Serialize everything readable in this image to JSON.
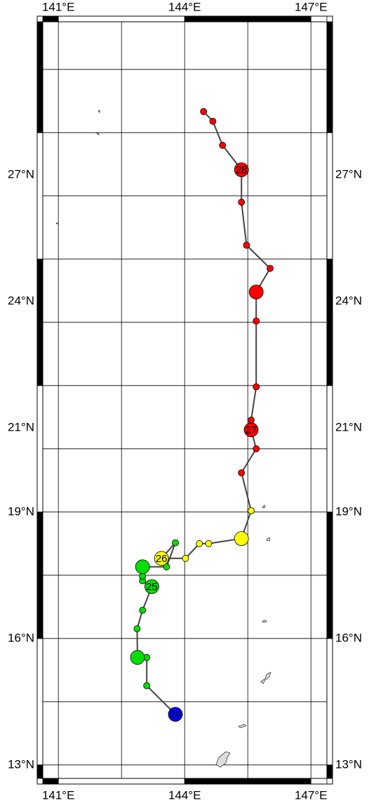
{
  "chart_data": {
    "type": "track",
    "xlim": [
      140.63,
      147.38
    ],
    "ylim": [
      12.68,
      30.63
    ],
    "xticks": [
      {
        "value": 141,
        "label": "141°E"
      },
      {
        "value": 144,
        "label": "144°E"
      },
      {
        "value": 147,
        "label": "147°E"
      }
    ],
    "yticks": [
      {
        "value": 13,
        "label": "13°N"
      },
      {
        "value": 16,
        "label": "16°N"
      },
      {
        "value": 19,
        "label": "19°N"
      },
      {
        "value": 21,
        "label": "21°N"
      },
      {
        "value": 24,
        "label": "24°N"
      },
      {
        "value": 27,
        "label": "27°N"
      }
    ],
    "xgrid": [
      141,
      142.5,
      144,
      145.5,
      147
    ],
    "ygrid": [
      13,
      14.5,
      16,
      17.5,
      19,
      20.5,
      22,
      23.5,
      25,
      26.5,
      28,
      29.5
    ],
    "x": [
      143.78,
      143.1,
      143.1,
      142.88,
      142.87,
      143.0,
      143.22,
      143.0,
      143.0,
      143.0,
      143.57,
      143.78,
      143.45,
      144.02,
      144.35,
      144.57,
      145.35,
      145.58,
      145.35,
      145.7,
      145.58,
      145.58,
      145.7,
      145.7,
      145.7,
      146.03,
      145.47,
      145.35,
      145.35,
      144.9,
      144.67,
      144.45
    ],
    "values": [
      14.2,
      14.88,
      15.55,
      15.55,
      16.23,
      16.67,
      17.23,
      17.37,
      17.48,
      17.7,
      17.7,
      18.27,
      17.9,
      17.9,
      18.25,
      18.25,
      18.37,
      19.03,
      19.93,
      20.5,
      20.95,
      21.18,
      21.97,
      23.53,
      24.22,
      24.78,
      25.33,
      26.35,
      27.12,
      27.7,
      28.27,
      28.5
    ],
    "colors": [
      "#0000ff",
      "#00e000",
      "#00e000",
      "#00e000",
      "#00e000",
      "#00e000",
      "#00e000",
      "#00e000",
      "#00e000",
      "#00e000",
      "#00e000",
      "#00e000",
      "#ffff00",
      "#ffff00",
      "#ffff00",
      "#ffff00",
      "#ffff00",
      "#ffff00",
      "#ff0000",
      "#ff0000",
      "#ff0000",
      "#ff0000",
      "#ff0000",
      "#ff0000",
      "#ff0000",
      "#ff0000",
      "#ff0000",
      "#ff0000",
      "#ff0000",
      "#ff0000",
      "#ff0000",
      "#ff0000"
    ],
    "sizes": [
      "large",
      "small",
      "small",
      "large",
      "small",
      "small",
      "large",
      "small",
      "small",
      "large",
      "small",
      "small",
      "large",
      "small",
      "small",
      "small",
      "large",
      "small",
      "small",
      "small",
      "large",
      "small",
      "small",
      "small",
      "large",
      "small",
      "small",
      "small",
      "large",
      "small",
      "small",
      "small"
    ],
    "labels": [
      "24",
      null,
      null,
      null,
      null,
      null,
      "25",
      null,
      null,
      null,
      null,
      null,
      "26",
      null,
      null,
      null,
      null,
      null,
      null,
      null,
      "27",
      null,
      null,
      null,
      null,
      null,
      null,
      null,
      "28",
      null,
      null,
      null
    ],
    "track_color": "#444444"
  }
}
